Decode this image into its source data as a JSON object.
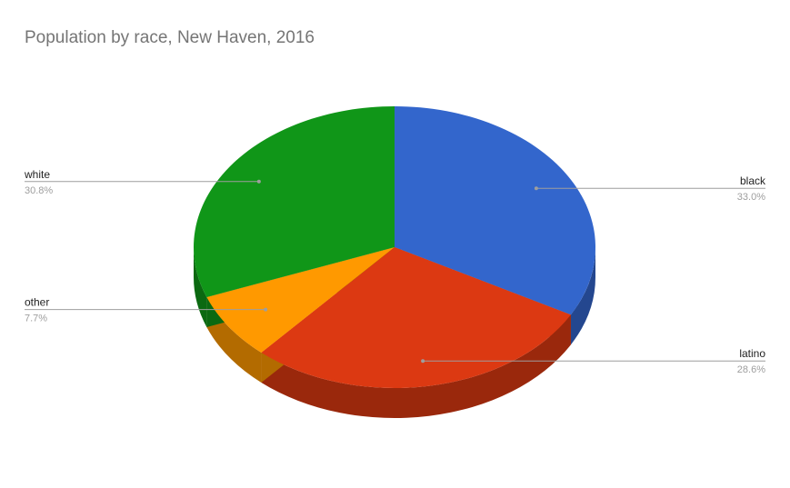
{
  "chart_data": {
    "type": "pie",
    "style": "3d",
    "title": "Population by race, New Haven, 2016",
    "slices": [
      {
        "label": "black",
        "value": 33.0,
        "display": "33.0%",
        "color": "#3366cc",
        "side_color": "#24478f"
      },
      {
        "label": "latino",
        "value": 28.6,
        "display": "28.6%",
        "color": "#dc3912",
        "side_color": "#9a280c"
      },
      {
        "label": "other",
        "value": 7.7,
        "display": "7.7%",
        "color": "#ff9900",
        "side_color": "#b36b00"
      },
      {
        "label": "white",
        "value": 30.8,
        "display": "30.8%",
        "color": "#109618",
        "side_color": "#0b6911"
      }
    ],
    "legend": "labeled slices"
  }
}
